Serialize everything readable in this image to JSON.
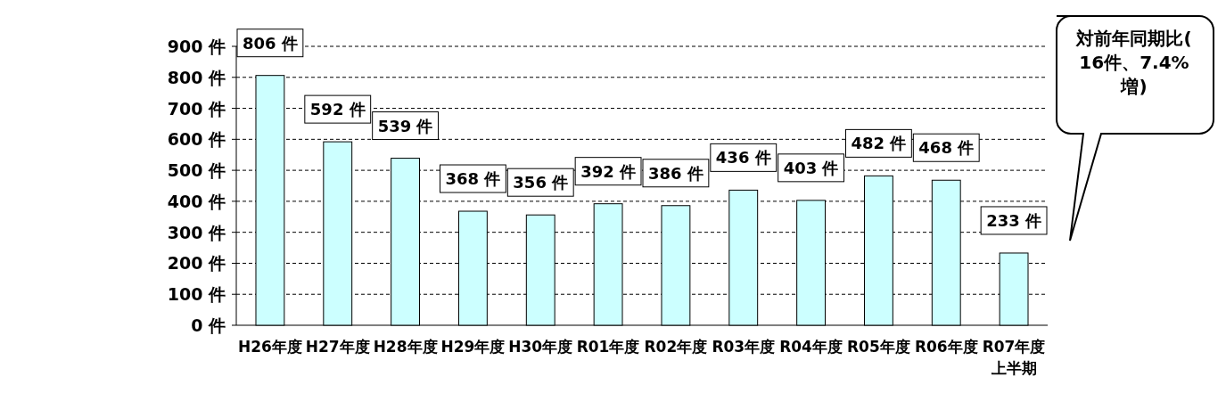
{
  "chart_data": {
    "type": "bar",
    "categories": [
      "H26年度",
      "H27年度",
      "H28年度",
      "H29年度",
      "H30年度",
      "R01年度",
      "R02年度",
      "R03年度",
      "R04年度",
      "R05年度",
      "R06年度",
      "R07年度上半期"
    ],
    "values": [
      806,
      592,
      539,
      368,
      356,
      392,
      386,
      436,
      403,
      482,
      468,
      233
    ],
    "value_labels": [
      "806 件",
      "592 件",
      "539 件",
      "368 件",
      "356 件",
      "392 件",
      "386 件",
      "436 件",
      "403 件",
      "482 件",
      "468 件",
      "233 件"
    ],
    "color": "#ccffff",
    "ylim": [
      0,
      900
    ],
    "yticks": [
      {
        "value": 0,
        "label": "0 件"
      },
      {
        "value": 100,
        "label": "100 件"
      },
      {
        "value": 200,
        "label": "200 件"
      },
      {
        "value": 300,
        "label": "300 件"
      },
      {
        "value": 400,
        "label": "400 件"
      },
      {
        "value": 500,
        "label": "500 件"
      },
      {
        "value": 600,
        "label": "600 件"
      },
      {
        "value": 700,
        "label": "700 件"
      },
      {
        "value": 800,
        "label": "800 件"
      },
      {
        "value": 900,
        "label": "900 件"
      }
    ],
    "grid": "y",
    "annotations": [
      "対前年同期比(16件、7.4%増)"
    ]
  }
}
